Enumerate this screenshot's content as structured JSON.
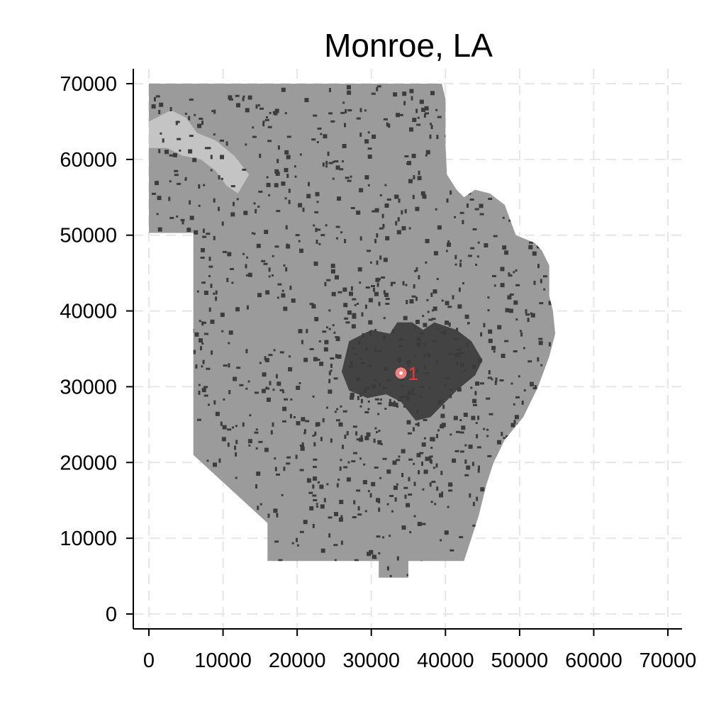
{
  "title": "Monroe, LA",
  "colors": {
    "background": "#ffffff",
    "grid": "#e6e6e6",
    "land": "#9b9b9b",
    "water": "#c4c4c4",
    "developed": "#3c3c3c",
    "axis": "#000000",
    "marker_fill": "#f08080",
    "marker_center": "#ffffff",
    "marker_label": "#e8393a"
  },
  "chart_data": {
    "type": "map",
    "title": "Monroe, LA",
    "xlabel": "",
    "ylabel": "",
    "xlim": [
      -2000,
      72000
    ],
    "ylim": [
      -2000,
      72000
    ],
    "x_ticks": [
      0,
      10000,
      20000,
      30000,
      40000,
      50000,
      60000,
      70000
    ],
    "y_ticks": [
      0,
      10000,
      20000,
      30000,
      40000,
      50000,
      60000,
      70000
    ],
    "x_tick_labels": [
      "0",
      "10000",
      "20000",
      "30000",
      "40000",
      "50000",
      "60000",
      "70000"
    ],
    "y_tick_labels": [
      "0",
      "10000",
      "20000",
      "30000",
      "40000",
      "50000",
      "60000",
      "70000"
    ],
    "grid": true,
    "grid_style": "dashed",
    "points": [
      {
        "label": "1",
        "x": 34000,
        "y": 31800
      }
    ],
    "region_outline": [
      [
        0,
        70000
      ],
      [
        39500,
        70000
      ],
      [
        40000,
        68000
      ],
      [
        40000,
        62000
      ],
      [
        40200,
        58000
      ],
      [
        41500,
        56000
      ],
      [
        42500,
        55000
      ],
      [
        44000,
        56000
      ],
      [
        46000,
        55500
      ],
      [
        48000,
        54000
      ],
      [
        49500,
        50000
      ],
      [
        52000,
        49000
      ],
      [
        53000,
        48000
      ],
      [
        54000,
        46000
      ],
      [
        54000,
        42000
      ],
      [
        54500,
        40000
      ],
      [
        54800,
        37000
      ],
      [
        54000,
        34000
      ],
      [
        52500,
        30000
      ],
      [
        50500,
        26000
      ],
      [
        48000,
        23000
      ],
      [
        46500,
        20000
      ],
      [
        45500,
        17000
      ],
      [
        44500,
        13000
      ],
      [
        43500,
        10000
      ],
      [
        42500,
        7000
      ],
      [
        35000,
        7000
      ],
      [
        35000,
        4800
      ],
      [
        31000,
        4800
      ],
      [
        31000,
        7000
      ],
      [
        16000,
        7000
      ],
      [
        16000,
        12000
      ],
      [
        6000,
        21000
      ],
      [
        6000,
        50300
      ],
      [
        0,
        50300
      ]
    ],
    "water_bodies": [
      [
        [
          0,
          65000
        ],
        [
          3000,
          66500
        ],
        [
          5000,
          65500
        ],
        [
          6500,
          63500
        ],
        [
          9000,
          62500
        ],
        [
          11500,
          60500
        ],
        [
          13500,
          58000
        ],
        [
          12000,
          55500
        ],
        [
          10500,
          56500
        ],
        [
          9000,
          58500
        ],
        [
          7000,
          60000
        ],
        [
          4500,
          60500
        ],
        [
          2500,
          61500
        ],
        [
          0,
          61500
        ]
      ]
    ],
    "urban_core": [
      [
        27000,
        36000
      ],
      [
        30000,
        37500
      ],
      [
        32500,
        37000
      ],
      [
        33500,
        38500
      ],
      [
        35500,
        38500
      ],
      [
        37000,
        37500
      ],
      [
        38500,
        38500
      ],
      [
        41500,
        37500
      ],
      [
        43500,
        36000
      ],
      [
        45000,
        33500
      ],
      [
        44000,
        31500
      ],
      [
        41500,
        29500
      ],
      [
        39500,
        27500
      ],
      [
        38000,
        26000
      ],
      [
        36000,
        25500
      ],
      [
        34000,
        28000
      ],
      [
        32000,
        29000
      ],
      [
        29500,
        28500
      ],
      [
        27000,
        29500
      ],
      [
        26000,
        32000
      ]
    ]
  }
}
